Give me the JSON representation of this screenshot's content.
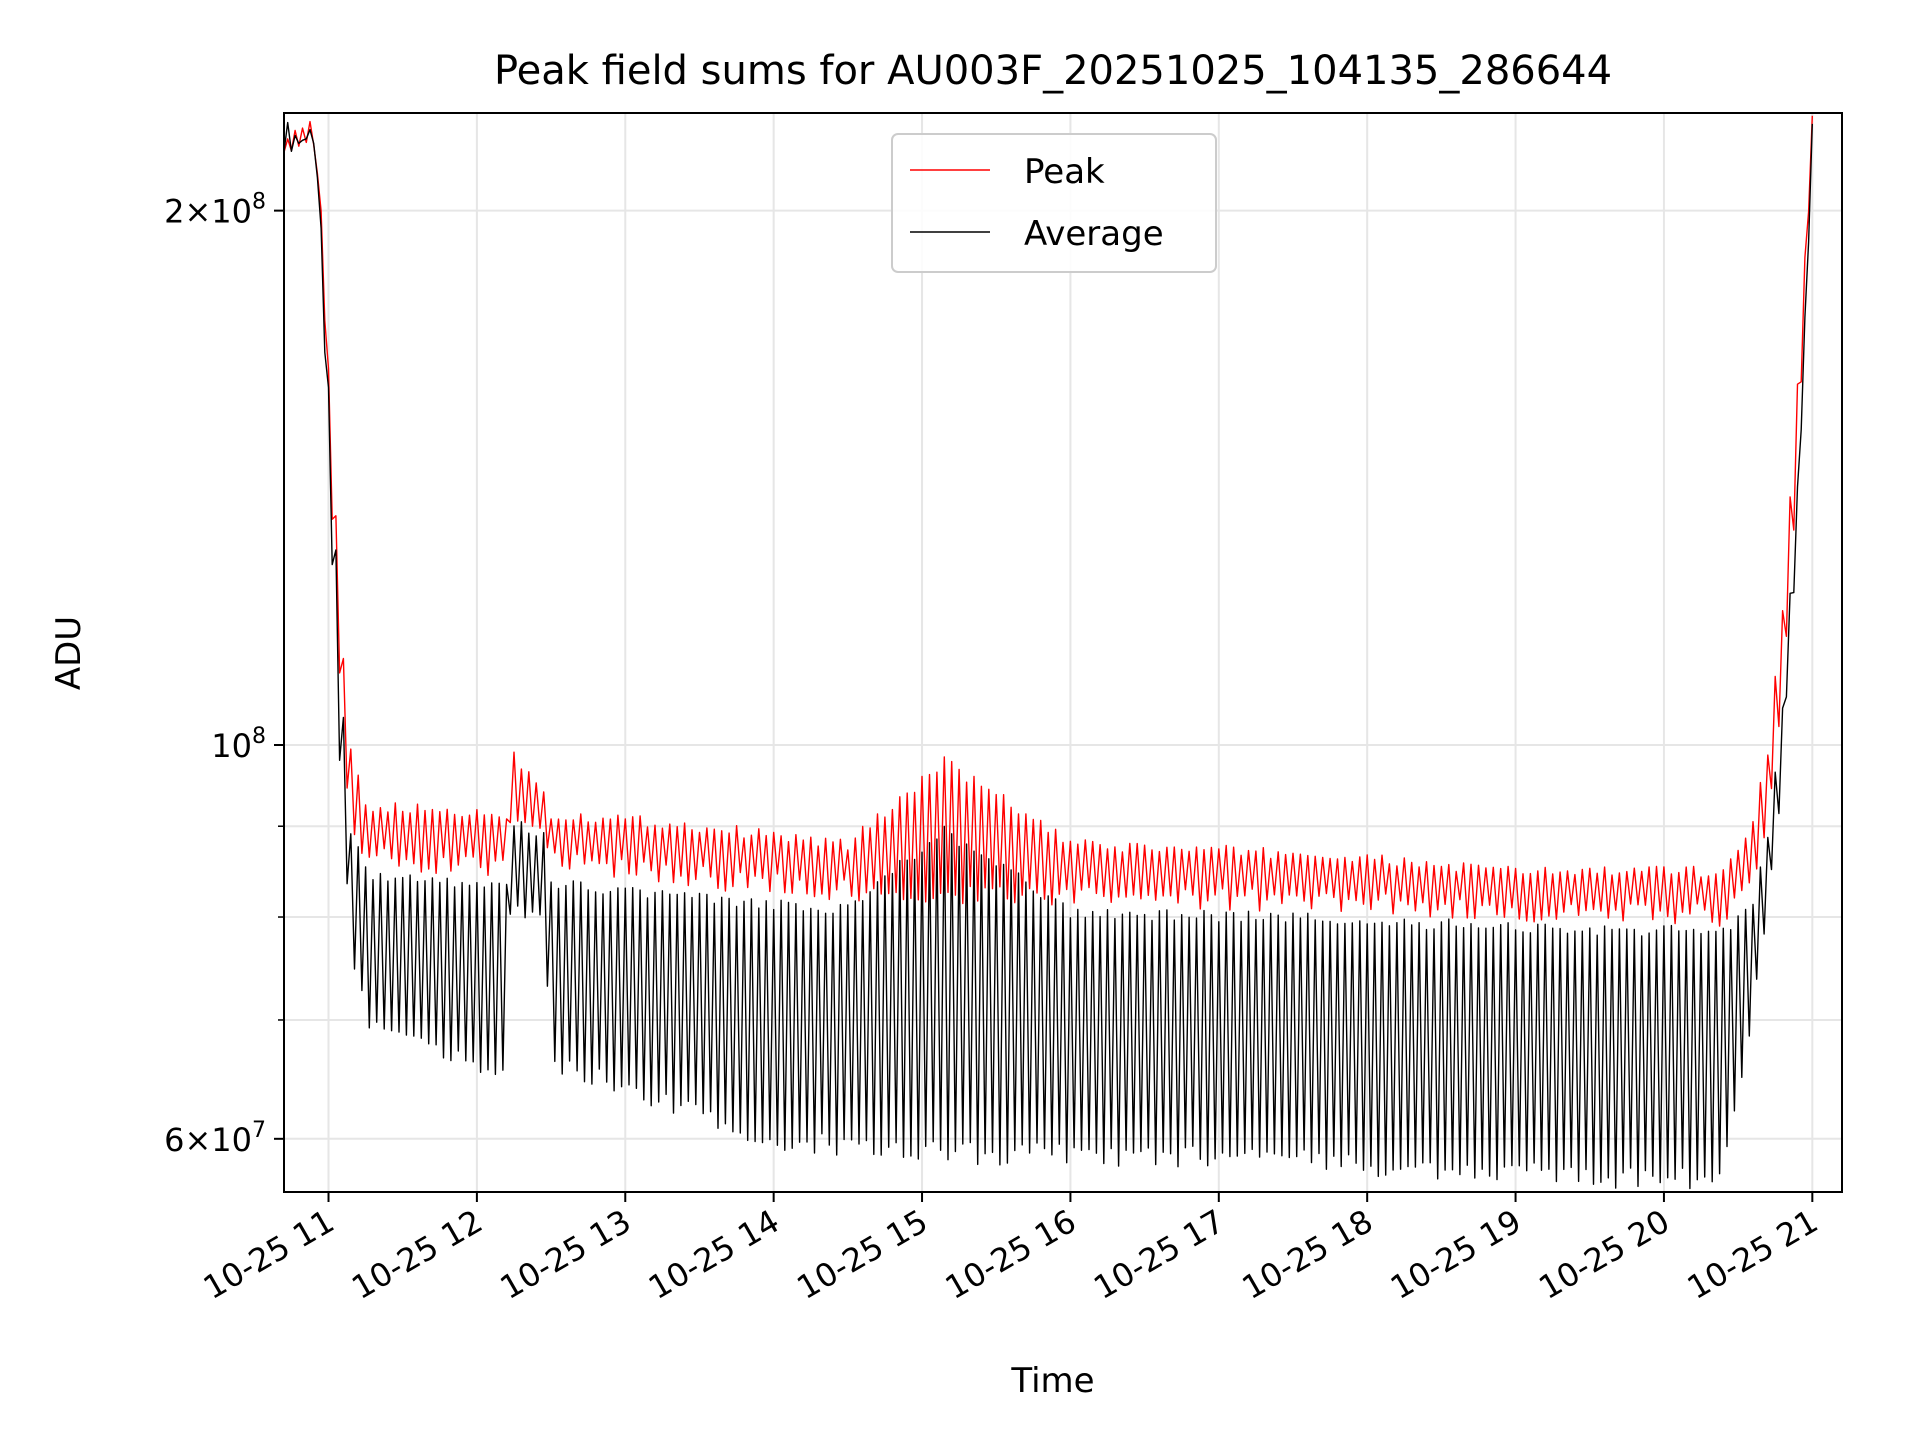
{
  "chart_data": {
    "type": "line",
    "title": "Peak field sums for AU003F_20251025_104135_286644",
    "xlabel": "Time",
    "ylabel": "ADU",
    "yscale": "log",
    "ylim": [
      56000000,
      227000000
    ],
    "xlim_hours": [
      10.7,
      21.2
    ],
    "grid": true,
    "legend_position": "upper center",
    "x_tick_labels": [
      "10-25 11",
      "10-25 12",
      "10-25 13",
      "10-25 14",
      "10-25 15",
      "10-25 16",
      "10-25 17",
      "10-25 18",
      "10-25 19",
      "10-25 20",
      "10-25 21"
    ],
    "x_tick_hours": [
      11,
      12,
      13,
      14,
      15,
      16,
      17,
      18,
      19,
      20,
      21
    ],
    "y_major_ticks": [
      {
        "value": 60000000,
        "mantissa": "6",
        "base": "10",
        "exp": "7"
      },
      {
        "value": 100000000,
        "mantissa": "",
        "base": "10",
        "exp": "8"
      },
      {
        "value": 200000000,
        "mantissa": "2",
        "base": "10",
        "exp": "8"
      }
    ],
    "y_minor_ticks": [
      70000000,
      80000000,
      90000000
    ],
    "series": [
      {
        "name": "Peak",
        "color": "#ff0000",
        "envelope": [
          {
            "t": 10.7,
            "high": 219000000,
            "low": 219000000
          },
          {
            "t": 10.9,
            "high": 220000000,
            "low": 219000000
          },
          {
            "t": 10.95,
            "high": 200000000,
            "low": 195000000
          },
          {
            "t": 11.0,
            "high": 165000000,
            "low": 150000000
          },
          {
            "t": 11.05,
            "high": 135000000,
            "low": 118000000
          },
          {
            "t": 11.1,
            "high": 112000000,
            "low": 98000000
          },
          {
            "t": 11.15,
            "high": 100000000,
            "low": 88000000
          },
          {
            "t": 11.25,
            "high": 93000000,
            "low": 85000000
          },
          {
            "t": 12.2,
            "high": 92000000,
            "low": 84000000
          },
          {
            "t": 12.22,
            "high": 100000000,
            "low": 88000000
          },
          {
            "t": 12.45,
            "high": 95000000,
            "low": 88000000
          },
          {
            "t": 12.5,
            "high": 92000000,
            "low": 84500000
          },
          {
            "t": 13.0,
            "high": 91500000,
            "low": 84000000
          },
          {
            "t": 13.8,
            "high": 90000000,
            "low": 82500000
          },
          {
            "t": 14.5,
            "high": 88500000,
            "low": 81500000
          },
          {
            "t": 15.15,
            "high": 98500000,
            "low": 81000000
          },
          {
            "t": 16.0,
            "high": 88500000,
            "low": 81000000
          },
          {
            "t": 17.5,
            "high": 87500000,
            "low": 80500000
          },
          {
            "t": 19.0,
            "high": 85500000,
            "low": 79500000
          },
          {
            "t": 20.4,
            "high": 85500000,
            "low": 79000000
          },
          {
            "t": 20.6,
            "high": 91000000,
            "low": 82000000
          },
          {
            "t": 20.7,
            "high": 100000000,
            "low": 90000000
          },
          {
            "t": 20.8,
            "high": 120000000,
            "low": 105000000
          },
          {
            "t": 20.9,
            "high": 160000000,
            "low": 140000000
          },
          {
            "t": 20.95,
            "high": 190000000,
            "low": 175000000
          },
          {
            "t": 21.0,
            "high": 227000000,
            "low": 215000000
          }
        ]
      },
      {
        "name": "Average",
        "color": "#000000",
        "envelope": [
          {
            "t": 10.7,
            "high": 219000000,
            "low": 219000000
          },
          {
            "t": 10.9,
            "high": 220000000,
            "low": 218000000
          },
          {
            "t": 10.95,
            "high": 198000000,
            "low": 190000000
          },
          {
            "t": 11.0,
            "high": 160000000,
            "low": 140000000
          },
          {
            "t": 11.05,
            "high": 130000000,
            "low": 108000000
          },
          {
            "t": 11.1,
            "high": 105000000,
            "low": 88000000
          },
          {
            "t": 11.15,
            "high": 90000000,
            "low": 75000000
          },
          {
            "t": 11.3,
            "high": 85000000,
            "low": 68000000
          },
          {
            "t": 12.2,
            "high": 84000000,
            "low": 64500000
          },
          {
            "t": 12.22,
            "high": 91000000,
            "low": 80000000
          },
          {
            "t": 12.45,
            "high": 90000000,
            "low": 79000000
          },
          {
            "t": 12.5,
            "high": 84000000,
            "low": 65000000
          },
          {
            "t": 13.0,
            "high": 83500000,
            "low": 63500000
          },
          {
            "t": 13.8,
            "high": 82000000,
            "low": 59500000
          },
          {
            "t": 14.5,
            "high": 81500000,
            "low": 58500000
          },
          {
            "t": 15.15,
            "high": 90000000,
            "low": 58000000
          },
          {
            "t": 16.0,
            "high": 81000000,
            "low": 58000000
          },
          {
            "t": 17.5,
            "high": 80500000,
            "low": 57500000
          },
          {
            "t": 19.0,
            "high": 79500000,
            "low": 56500000
          },
          {
            "t": 20.4,
            "high": 79000000,
            "low": 56000000
          },
          {
            "t": 20.6,
            "high": 82000000,
            "low": 70000000
          },
          {
            "t": 20.7,
            "high": 90000000,
            "low": 80000000
          },
          {
            "t": 20.8,
            "high": 105000000,
            "low": 95000000
          },
          {
            "t": 20.9,
            "high": 140000000,
            "low": 130000000
          },
          {
            "t": 20.95,
            "high": 175000000,
            "low": 165000000
          },
          {
            "t": 21.0,
            "high": 227000000,
            "low": 215000000
          }
        ]
      }
    ]
  }
}
